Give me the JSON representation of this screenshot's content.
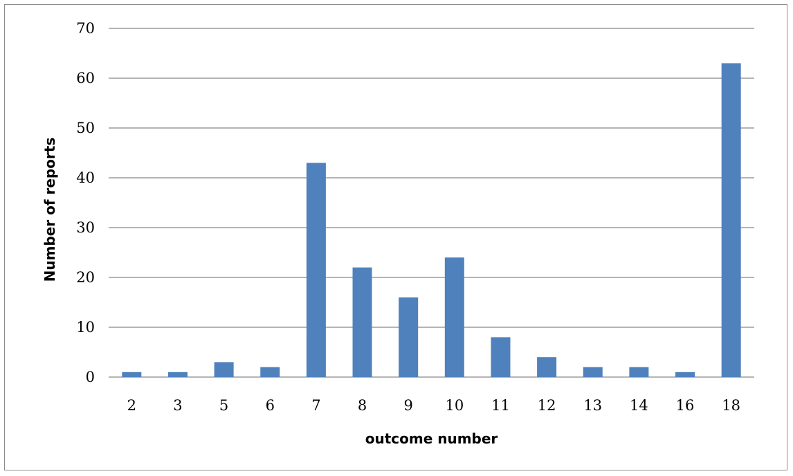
{
  "chart_data": {
    "type": "bar",
    "title": "",
    "xlabel": "outcome number",
    "ylabel": "Number of reports",
    "categories": [
      "2",
      "3",
      "5",
      "6",
      "7",
      "8",
      "9",
      "10",
      "11",
      "12",
      "13",
      "14",
      "16",
      "18"
    ],
    "values": [
      1,
      1,
      3,
      2,
      43,
      22,
      16,
      24,
      8,
      4,
      2,
      2,
      1,
      63
    ],
    "ylim": [
      0,
      70
    ],
    "yticks": [
      0,
      10,
      20,
      30,
      40,
      50,
      60,
      70
    ],
    "grid": true,
    "legend": "none",
    "bar_color": "#4f81bd",
    "gridline_color": "#868686"
  }
}
